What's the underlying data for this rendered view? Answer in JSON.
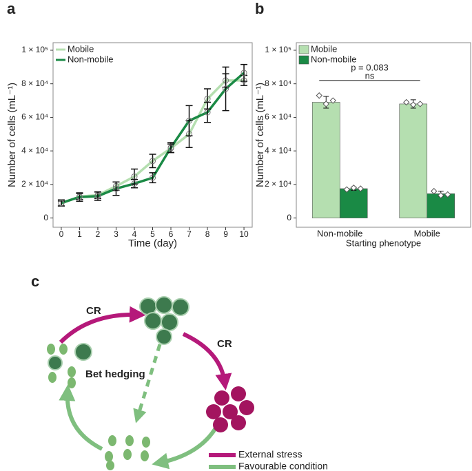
{
  "chart_data": [
    {
      "type": "line",
      "panel_label": "a",
      "xlabel": "Time (day)",
      "ylabel": "Number of cells (mL⁻¹)",
      "x": [
        0,
        1,
        2,
        3,
        4,
        5,
        6,
        7,
        8,
        9,
        10
      ],
      "series": [
        {
          "name": "Mobile",
          "color": "#b5dfb0",
          "values": [
            8600,
            12800,
            13600,
            19000,
            24700,
            34000,
            41600,
            50000,
            71000,
            82000,
            82000
          ],
          "errors": [
            1500,
            1800,
            2000,
            2500,
            4500,
            4000,
            2500,
            8000,
            6000,
            4000,
            3000
          ]
        },
        {
          "name": "Non-mobile",
          "color": "#1a8a45",
          "values": [
            9000,
            12500,
            13000,
            17500,
            20500,
            24000,
            42000,
            58000,
            63000,
            77000,
            86500
          ],
          "errors": [
            1800,
            2500,
            2500,
            4000,
            2500,
            3000,
            3000,
            9000,
            6000,
            13000,
            5000
          ]
        }
      ],
      "xlim": [
        -0.45,
        10.45
      ],
      "xticks": [
        0,
        1,
        2,
        3,
        4,
        5,
        6,
        7,
        8,
        9,
        10
      ],
      "ylim": [
        -5500,
        104500
      ],
      "yticks": [
        0,
        {
          "value": 20000,
          "label": "2 × 10⁴"
        },
        {
          "value": 40000,
          "label": "4 × 10⁴"
        },
        {
          "value": 60000,
          "label": "6 × 10⁴"
        },
        {
          "value": 80000,
          "label": "8 × 10⁴"
        },
        {
          "value": 100000,
          "label": "1 × 10⁵"
        }
      ],
      "legend": "top-left"
    },
    {
      "type": "bar",
      "panel_label": "b",
      "xlabel": "Starting phenotype",
      "ylabel": "Number of cells (mL⁻¹)",
      "categories": [
        "Non-mobile",
        "Mobile"
      ],
      "series": [
        {
          "name": "Mobile",
          "color": "#b5dfb0",
          "values": [
            69000,
            68000
          ],
          "errors": [
            3500,
            2500
          ],
          "replicates": [
            [
              73000,
              68000,
              70000
            ],
            [
              69000,
              67500,
              68000
            ]
          ]
        },
        {
          "name": "Non-mobile",
          "color": "#1a8a45",
          "values": [
            17500,
            14500
          ],
          "errors": [
            1000,
            1500
          ],
          "replicates": [
            [
              17000,
              18000,
              17500
            ],
            [
              16000,
              13500,
              14000
            ]
          ]
        }
      ],
      "ylim": [
        -5500,
        104500
      ],
      "yticks": [
        0,
        {
          "value": 20000,
          "label": "2 × 10⁴"
        },
        {
          "value": 40000,
          "label": "4 × 10⁴"
        },
        {
          "value": 60000,
          "label": "6 × 10⁴"
        },
        {
          "value": 80000,
          "label": "8 × 10⁴"
        },
        {
          "value": 100000,
          "label": "1 × 10⁵"
        }
      ],
      "annotation": "p = 0.083",
      "significance": "ns",
      "legend": "top-left"
    }
  ],
  "diagram": {
    "panel_label": "c",
    "arrow_labels": [
      "CR",
      "CR"
    ],
    "center_label": "Bet hedging",
    "legend": [
      "External stress",
      "Favourable condition"
    ]
  }
}
